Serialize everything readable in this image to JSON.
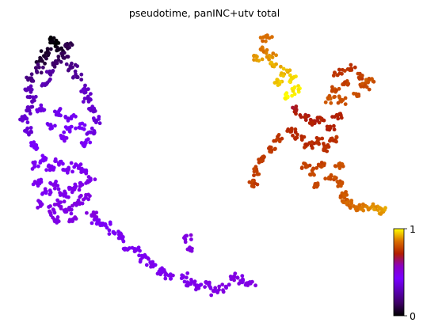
{
  "chart_data": {
    "type": "scatter",
    "title": "pseudotime, panINC+utv total",
    "xlabel": "",
    "ylabel": "",
    "grid": false,
    "axes_visible": false,
    "colormap": "gnuplot",
    "colormap_stops": [
      "#000000",
      "#3c0063",
      "#5a00b4",
      "#7800ff",
      "#8a00c0",
      "#b11e00",
      "#d96f00",
      "#ffff00"
    ],
    "colorbar": {
      "min": 0,
      "max": 1,
      "ticks": [
        "0",
        "1"
      ],
      "placement": "bottom-right"
    },
    "point_color_default": "#7d00ff",
    "clusters": [
      {
        "region": "left-top-loop",
        "pseudotime_range": [
          0.0,
          0.3
        ],
        "points": [
          [
            0.13,
            0.13
          ],
          [
            0.12,
            0.12
          ],
          [
            0.14,
            0.15
          ],
          [
            0.11,
            0.16
          ],
          [
            0.1,
            0.18
          ],
          [
            0.16,
            0.14
          ],
          [
            0.15,
            0.17
          ],
          [
            0.13,
            0.19
          ],
          [
            0.09,
            0.21
          ],
          [
            0.08,
            0.24
          ],
          [
            0.17,
            0.2
          ],
          [
            0.18,
            0.23
          ],
          [
            0.12,
            0.22
          ],
          [
            0.11,
            0.25
          ],
          [
            0.07,
            0.27
          ]
        ]
      },
      {
        "region": "left-upper-body",
        "pseudotime_range": [
          0.3,
          0.45
        ],
        "points": [
          [
            0.08,
            0.3
          ],
          [
            0.07,
            0.33
          ],
          [
            0.2,
            0.27
          ],
          [
            0.21,
            0.3
          ],
          [
            0.22,
            0.33
          ],
          [
            0.06,
            0.36
          ],
          [
            0.07,
            0.4
          ],
          [
            0.23,
            0.36
          ],
          [
            0.22,
            0.4
          ],
          [
            0.1,
            0.33
          ],
          [
            0.14,
            0.34
          ],
          [
            0.17,
            0.35
          ],
          [
            0.12,
            0.38
          ],
          [
            0.16,
            0.39
          ],
          [
            0.19,
            0.38
          ],
          [
            0.08,
            0.44
          ],
          [
            0.2,
            0.43
          ],
          [
            0.15,
            0.42
          ]
        ]
      },
      {
        "region": "left-dense-mass",
        "pseudotime_range": [
          0.45,
          0.5
        ],
        "points": [
          [
            0.08,
            0.5
          ],
          [
            0.1,
            0.48
          ],
          [
            0.12,
            0.51
          ],
          [
            0.14,
            0.49
          ],
          [
            0.16,
            0.52
          ],
          [
            0.18,
            0.5
          ],
          [
            0.2,
            0.52
          ],
          [
            0.09,
            0.55
          ],
          [
            0.11,
            0.58
          ],
          [
            0.13,
            0.56
          ],
          [
            0.15,
            0.59
          ],
          [
            0.17,
            0.57
          ],
          [
            0.19,
            0.56
          ],
          [
            0.21,
            0.55
          ],
          [
            0.1,
            0.62
          ],
          [
            0.12,
            0.64
          ],
          [
            0.14,
            0.62
          ],
          [
            0.16,
            0.64
          ],
          [
            0.18,
            0.62
          ],
          [
            0.2,
            0.6
          ],
          [
            0.13,
            0.67
          ],
          [
            0.17,
            0.67
          ],
          [
            0.22,
            0.65
          ]
        ]
      },
      {
        "region": "left-tail",
        "pseudotime_range": [
          0.45,
          0.5
        ],
        "points": [
          [
            0.23,
            0.67
          ],
          [
            0.25,
            0.68
          ],
          [
            0.27,
            0.7
          ],
          [
            0.29,
            0.72
          ],
          [
            0.3,
            0.75
          ],
          [
            0.32,
            0.76
          ],
          [
            0.34,
            0.78
          ],
          [
            0.36,
            0.8
          ],
          [
            0.38,
            0.82
          ],
          [
            0.4,
            0.84
          ],
          [
            0.43,
            0.84
          ],
          [
            0.45,
            0.86
          ],
          [
            0.47,
            0.87
          ],
          [
            0.49,
            0.86
          ],
          [
            0.51,
            0.88
          ],
          [
            0.53,
            0.87
          ],
          [
            0.55,
            0.84
          ],
          [
            0.57,
            0.85
          ],
          [
            0.59,
            0.86
          ],
          [
            0.44,
            0.72
          ],
          [
            0.45,
            0.75
          ]
        ]
      },
      {
        "region": "right-top-arm",
        "pseudotime_range": [
          0.85,
          1.0
        ],
        "points": [
          [
            0.63,
            0.12
          ],
          [
            0.62,
            0.15
          ],
          [
            0.64,
            0.17
          ],
          [
            0.61,
            0.18
          ],
          [
            0.65,
            0.2
          ],
          [
            0.67,
            0.22
          ],
          [
            0.66,
            0.25
          ],
          [
            0.69,
            0.24
          ],
          [
            0.7,
            0.27
          ],
          [
            0.68,
            0.29
          ]
        ]
      },
      {
        "region": "right-upper-right",
        "pseudotime_range": [
          0.75,
          0.82
        ],
        "points": [
          [
            0.8,
            0.22
          ],
          [
            0.83,
            0.21
          ],
          [
            0.85,
            0.23
          ],
          [
            0.82,
            0.25
          ],
          [
            0.86,
            0.26
          ],
          [
            0.79,
            0.27
          ],
          [
            0.84,
            0.29
          ],
          [
            0.81,
            0.3
          ],
          [
            0.87,
            0.24
          ],
          [
            0.78,
            0.3
          ]
        ]
      },
      {
        "region": "right-center-body",
        "pseudotime_range": [
          0.7,
          0.8
        ],
        "points": [
          [
            0.7,
            0.33
          ],
          [
            0.72,
            0.35
          ],
          [
            0.74,
            0.37
          ],
          [
            0.76,
            0.36
          ],
          [
            0.78,
            0.38
          ],
          [
            0.8,
            0.35
          ],
          [
            0.69,
            0.4
          ],
          [
            0.71,
            0.42
          ],
          [
            0.73,
            0.44
          ],
          [
            0.75,
            0.43
          ],
          [
            0.77,
            0.45
          ],
          [
            0.79,
            0.42
          ],
          [
            0.66,
            0.42
          ],
          [
            0.64,
            0.45
          ],
          [
            0.62,
            0.48
          ],
          [
            0.61,
            0.52
          ],
          [
            0.6,
            0.56
          ],
          [
            0.72,
            0.5
          ],
          [
            0.74,
            0.52
          ],
          [
            0.76,
            0.5
          ],
          [
            0.78,
            0.54
          ],
          [
            0.75,
            0.56
          ],
          [
            0.8,
            0.5
          ]
        ]
      },
      {
        "region": "right-lower-arm",
        "pseudotime_range": [
          0.8,
          0.9
        ],
        "points": [
          [
            0.8,
            0.56
          ],
          [
            0.81,
            0.59
          ],
          [
            0.82,
            0.61
          ],
          [
            0.83,
            0.62
          ],
          [
            0.85,
            0.63
          ],
          [
            0.87,
            0.63
          ],
          [
            0.89,
            0.63
          ],
          [
            0.9,
            0.64
          ]
        ]
      }
    ]
  }
}
